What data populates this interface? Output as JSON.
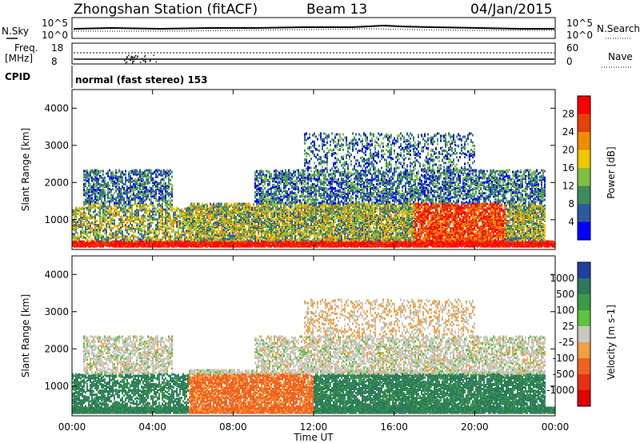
{
  "header": {
    "station": "Zhongshan Station (fitACF)",
    "beam": "Beam 13",
    "date": "04/Jan/2015"
  },
  "strip_panels": {
    "noise": {
      "left_label": "N.Sky",
      "right_label": "N.Search",
      "left_ticks": [
        "10^5",
        "10^0"
      ],
      "right_ticks": [
        "10^5",
        "10^0"
      ]
    },
    "freq": {
      "left_label_1": "Freq.",
      "left_label_2": "[MHz]",
      "right_label": "Nave",
      "left_ticks": [
        "18",
        "8"
      ],
      "right_ticks": [
        "60",
        "0"
      ]
    },
    "cpid": {
      "label": "CPID",
      "text": "normal (fast stereo) 153"
    }
  },
  "chart_data": [
    {
      "type": "heatmap",
      "name": "power",
      "ylabel": "Slant Range [km]",
      "xlabel": "",
      "ylim": [
        200,
        4500
      ],
      "x_ticks": [
        "00:00",
        "04:00",
        "08:00",
        "12:00",
        "16:00",
        "20:00",
        "00:00"
      ],
      "y_ticks": [
        1000,
        2000,
        3000,
        4000
      ],
      "colorbar": {
        "label": "Power [dB]",
        "ticks": [
          "28",
          "24",
          "20",
          "16",
          "12",
          "8",
          "4"
        ],
        "colors": [
          "#ff0000",
          "#e8400a",
          "#f08c00",
          "#f0c800",
          "#80c040",
          "#3c8c5a",
          "#2c5aa0",
          "#0000ff"
        ]
      }
    },
    {
      "type": "heatmap",
      "name": "velocity",
      "ylabel": "Slant Range [km]",
      "xlabel": "Time UT",
      "ylim": [
        200,
        4500
      ],
      "x_ticks": [
        "00:00",
        "04:00",
        "08:00",
        "12:00",
        "16:00",
        "20:00",
        "00:00"
      ],
      "y_ticks": [
        1000,
        2000,
        3000,
        4000
      ],
      "colorbar": {
        "label": "Velocity [m s-1]",
        "ticks": [
          "1000",
          "500",
          "100",
          "25",
          "-25",
          "-100",
          "-500",
          "-1000"
        ],
        "colors": [
          "#2040a0",
          "#2c7a5a",
          "#3c9a48",
          "#60c040",
          "#c8c8c0",
          "#f0a040",
          "#f06020",
          "#e83010",
          "#e00000"
        ]
      }
    }
  ]
}
